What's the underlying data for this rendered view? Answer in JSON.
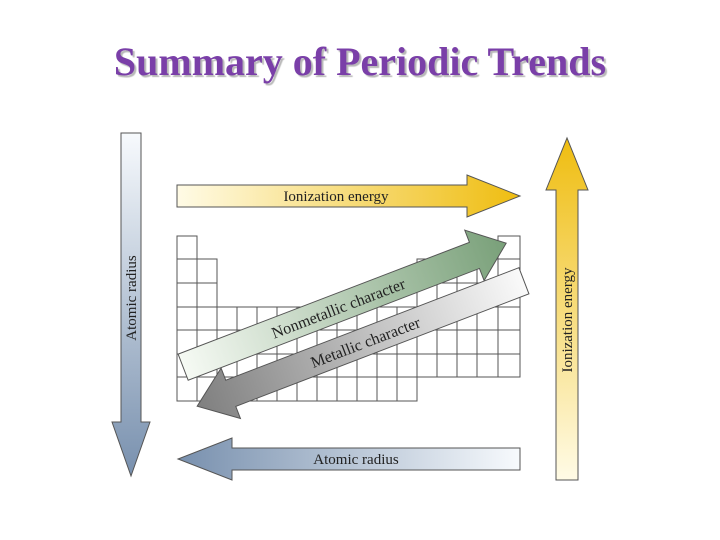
{
  "title": "Summary of Periodic Trends",
  "labels": {
    "ionization_top": "Ionization energy",
    "ionization_right": "Ionization energy",
    "atomic_radius_left": "Atomic radius",
    "atomic_radius_bottom": "Atomic radius",
    "nonmetallic": "Nonmetallic character",
    "metallic": "Metallic character"
  },
  "colors": {
    "title": "#7a3fa8",
    "ionization": "#f2c21a",
    "atomic_radius": "#7f97b4",
    "nonmetallic": "#7fa37f",
    "metallic": "#8a8a8a",
    "grid": "#555555"
  }
}
